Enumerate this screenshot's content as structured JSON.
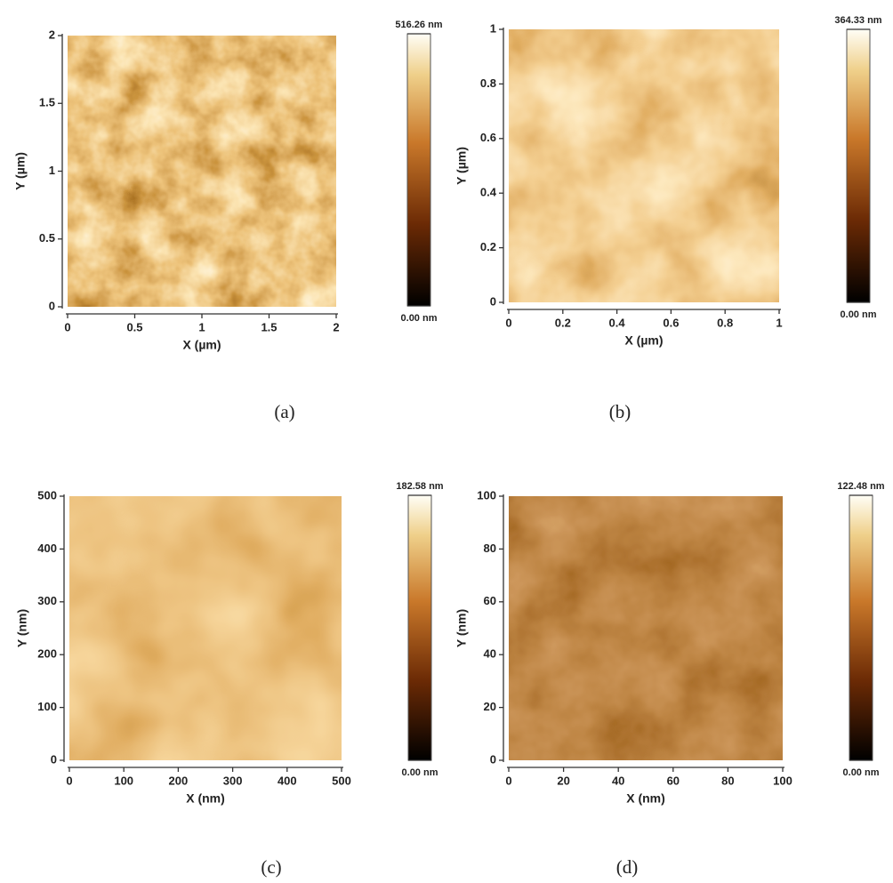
{
  "chart_data": [
    {
      "type": "heatmap",
      "xlabel": "X (µm)",
      "ylabel": "Y (µm)",
      "xlim": [
        0,
        2
      ],
      "ylim": [
        0,
        2
      ],
      "xticks": [
        0,
        0.5,
        1,
        1.5,
        2
      ],
      "yticks": [
        0,
        0.5,
        1,
        1.5,
        2
      ],
      "clim": [
        0,
        516.26
      ],
      "cticks": [
        {
          "value": 0,
          "label": "0.00 nm"
        },
        {
          "value": 516.26,
          "label": "516.26 nm"
        }
      ],
      "caption": "(a)"
    },
    {
      "type": "heatmap",
      "xlabel": "X (µm)",
      "ylabel": "Y (µm)",
      "xlim": [
        0,
        1
      ],
      "ylim": [
        0,
        1
      ],
      "xticks": [
        0,
        0.2,
        0.4,
        0.6,
        0.8,
        1
      ],
      "yticks": [
        0,
        0.2,
        0.4,
        0.6,
        0.8,
        1
      ],
      "clim": [
        0,
        364.33
      ],
      "cticks": [
        {
          "value": 0,
          "label": "0.00 nm"
        },
        {
          "value": 364.33,
          "label": "364.33 nm"
        }
      ],
      "caption": "(b)"
    },
    {
      "type": "heatmap",
      "xlabel": "X (nm)",
      "ylabel": "Y (nm)",
      "xlim": [
        0,
        500
      ],
      "ylim": [
        0,
        500
      ],
      "xticks": [
        0,
        100,
        200,
        300,
        400,
        500
      ],
      "yticks": [
        0,
        100,
        200,
        300,
        400,
        500
      ],
      "clim": [
        0,
        182.58
      ],
      "cticks": [
        {
          "value": 0,
          "label": "0.00 nm"
        },
        {
          "value": 182.58,
          "label": "182.58 nm"
        }
      ],
      "caption": "(c)"
    },
    {
      "type": "heatmap",
      "xlabel": "X (nm)",
      "ylabel": "Y (nm)",
      "xlim": [
        0,
        100
      ],
      "ylim": [
        0,
        100
      ],
      "xticks": [
        0,
        20,
        40,
        60,
        80,
        100
      ],
      "yticks": [
        0,
        20,
        40,
        60,
        80,
        100
      ],
      "clim": [
        0,
        122.48
      ],
      "cticks": [
        {
          "value": 0,
          "label": "0.00 nm"
        },
        {
          "value": 122.48,
          "label": "122.48 nm"
        }
      ],
      "caption": "(d)"
    }
  ]
}
